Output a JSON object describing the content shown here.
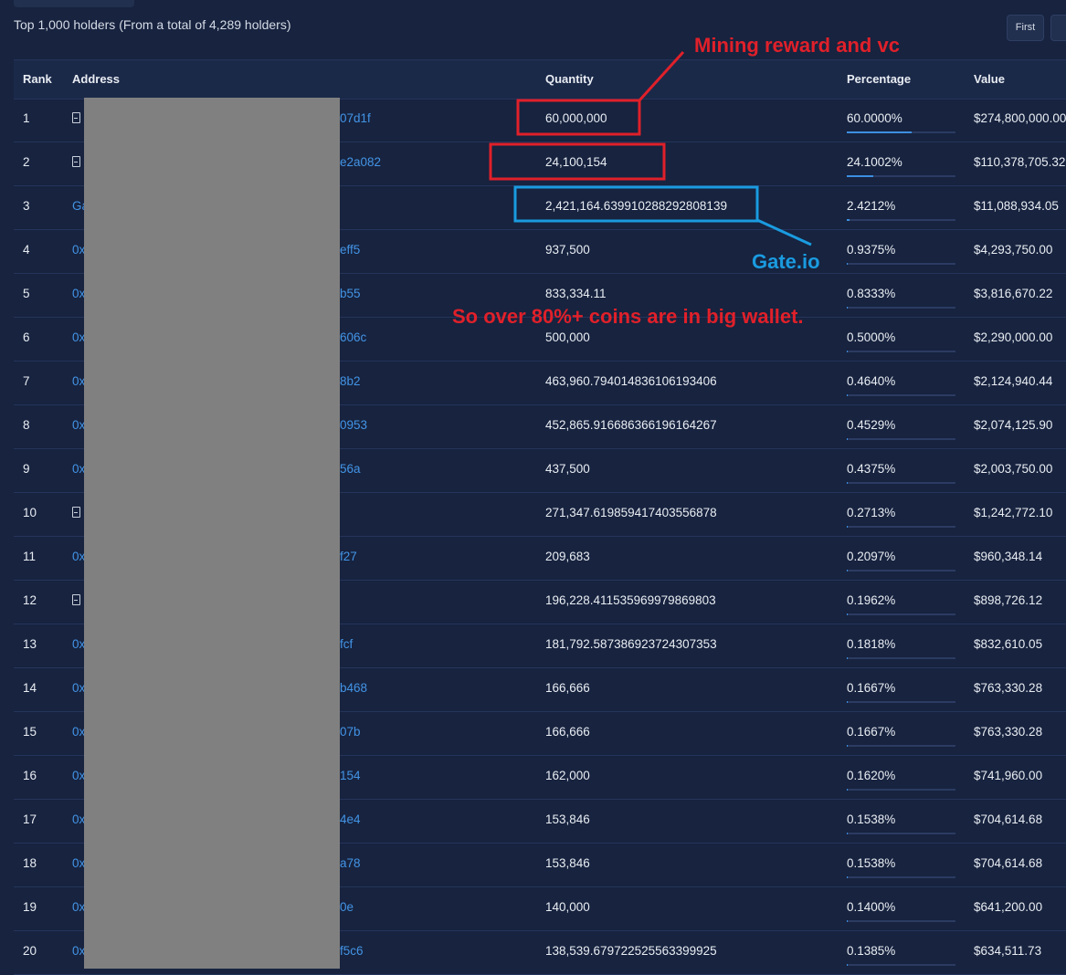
{
  "header": {
    "summary": "Top 1,000 holders (From a total of 4,289 holders)",
    "pagination": [
      "First"
    ]
  },
  "table": {
    "columns": [
      "Rank",
      "Address",
      "Quantity",
      "Percentage",
      "Value"
    ],
    "rows": [
      {
        "rank": "1",
        "contract": true,
        "address_end": "07d1f",
        "quantity": "60,000,000",
        "percentage": "60.0000%",
        "value": "$274,800,000.00"
      },
      {
        "rank": "2",
        "contract": true,
        "address_end": "e2a082",
        "quantity": "24,100,154",
        "percentage": "24.1002%",
        "value": "$110,378,705.32"
      },
      {
        "rank": "3",
        "address_start": "Ga",
        "quantity": "2,421,164.639910288292808139",
        "percentage": "2.4212%",
        "value": "$11,088,934.05"
      },
      {
        "rank": "4",
        "address_start": "0x",
        "address_end": "eff5",
        "quantity": "937,500",
        "percentage": "0.9375%",
        "value": "$4,293,750.00"
      },
      {
        "rank": "5",
        "address_start": "0x",
        "address_end": "b55",
        "quantity": "833,334.11",
        "percentage": "0.8333%",
        "value": "$3,816,670.22"
      },
      {
        "rank": "6",
        "address_start": "0x",
        "address_end": "606c",
        "quantity": "500,000",
        "percentage": "0.5000%",
        "value": "$2,290,000.00"
      },
      {
        "rank": "7",
        "address_start": "0x",
        "address_end": "8b2",
        "quantity": "463,960.794014836106193406",
        "percentage": "0.4640%",
        "value": "$2,124,940.44"
      },
      {
        "rank": "8",
        "address_start": "0x",
        "address_end": "0953",
        "quantity": "452,865.916686366196164267",
        "percentage": "0.4529%",
        "value": "$2,074,125.90"
      },
      {
        "rank": "9",
        "address_start": "0x",
        "address_end": "56a",
        "quantity": "437,500",
        "percentage": "0.4375%",
        "value": "$2,003,750.00"
      },
      {
        "rank": "10",
        "contract": true,
        "quantity": "271,347.619859417403556878",
        "percentage": "0.2713%",
        "value": "$1,242,772.10"
      },
      {
        "rank": "11",
        "address_start": "0x",
        "address_end": "f27",
        "quantity": "209,683",
        "percentage": "0.2097%",
        "value": "$960,348.14"
      },
      {
        "rank": "12",
        "contract": true,
        "quantity": "196,228.411535969979869803",
        "percentage": "0.1962%",
        "value": "$898,726.12"
      },
      {
        "rank": "13",
        "address_start": "0x",
        "address_end": "fcf",
        "quantity": "181,792.587386923724307353",
        "percentage": "0.1818%",
        "value": "$832,610.05"
      },
      {
        "rank": "14",
        "address_start": "0x",
        "address_end": "b468",
        "quantity": "166,666",
        "percentage": "0.1667%",
        "value": "$763,330.28"
      },
      {
        "rank": "15",
        "address_start": "0x",
        "address_end": "07b",
        "quantity": "166,666",
        "percentage": "0.1667%",
        "value": "$763,330.28"
      },
      {
        "rank": "16",
        "address_start": "0x",
        "address_end": "154",
        "quantity": "162,000",
        "percentage": "0.1620%",
        "value": "$741,960.00"
      },
      {
        "rank": "17",
        "address_start": "0x",
        "address_end": "4e4",
        "quantity": "153,846",
        "percentage": "0.1538%",
        "value": "$704,614.68"
      },
      {
        "rank": "18",
        "address_start": "0x",
        "address_end": "a78",
        "quantity": "153,846",
        "percentage": "0.1538%",
        "value": "$704,614.68"
      },
      {
        "rank": "19",
        "address_start": "0x",
        "address_end": "0e",
        "quantity": "140,000",
        "percentage": "0.1400%",
        "value": "$641,200.00"
      },
      {
        "rank": "20",
        "address_start": "0x",
        "address_end": "f5c6",
        "quantity": "138,539.679722525563399925",
        "percentage": "0.1385%",
        "value": "$634,511.73"
      }
    ]
  },
  "annotations": {
    "mining": "Mining reward and vc",
    "gate": "Gate.io",
    "summary": "So over 80%+ coins are in big wallet."
  }
}
